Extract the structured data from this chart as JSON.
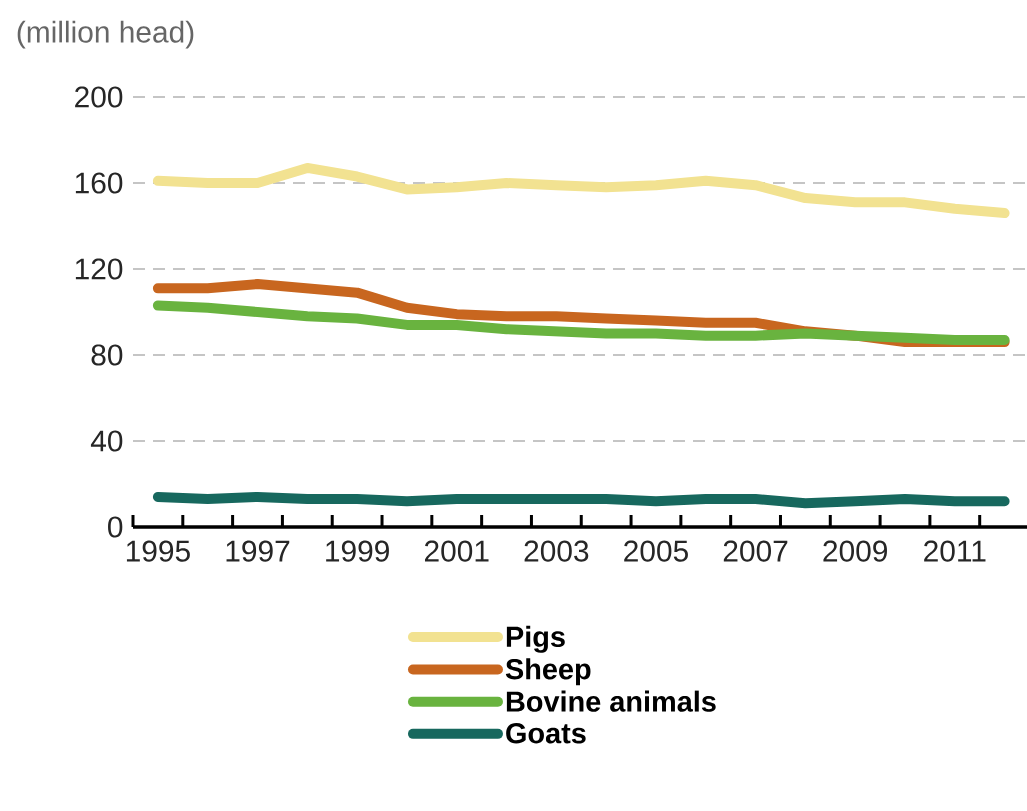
{
  "chart_data": {
    "type": "line",
    "ylabel": "(million head)",
    "categories": [
      "1995",
      null,
      "1997",
      null,
      "1999",
      null,
      "2001",
      null,
      "2003",
      null,
      "2005",
      null,
      "2007",
      null,
      "2009",
      null,
      "2011",
      null
    ],
    "series": [
      {
        "name": "Pigs",
        "color": "#f2e291",
        "values": [
          161,
          160,
          160,
          167,
          163,
          157,
          158,
          160,
          159,
          158,
          159,
          161,
          159,
          153,
          151,
          151,
          148,
          146
        ]
      },
      {
        "name": "Sheep",
        "color": "#c8661f",
        "values": [
          111,
          111,
          113,
          111,
          109,
          102,
          99,
          98,
          98,
          97,
          96,
          95,
          95,
          91,
          89,
          86,
          86,
          86
        ]
      },
      {
        "name": "Bovine animals",
        "color": "#69b33f",
        "values": [
          103,
          102,
          100,
          98,
          97,
          94,
          94,
          92,
          91,
          90,
          90,
          89,
          89,
          90,
          89,
          88,
          87,
          87
        ]
      },
      {
        "name": "Goats",
        "color": "#17685e",
        "values": [
          14,
          13,
          14,
          13,
          13,
          12,
          13,
          13,
          13,
          13,
          12,
          13,
          13,
          11,
          12,
          13,
          12,
          12
        ]
      }
    ],
    "ylim": [
      0,
      200
    ],
    "yticks": [
      0,
      40,
      80,
      120,
      160,
      200
    ],
    "grid": "y",
    "legend": "bottom",
    "marker": "none"
  }
}
